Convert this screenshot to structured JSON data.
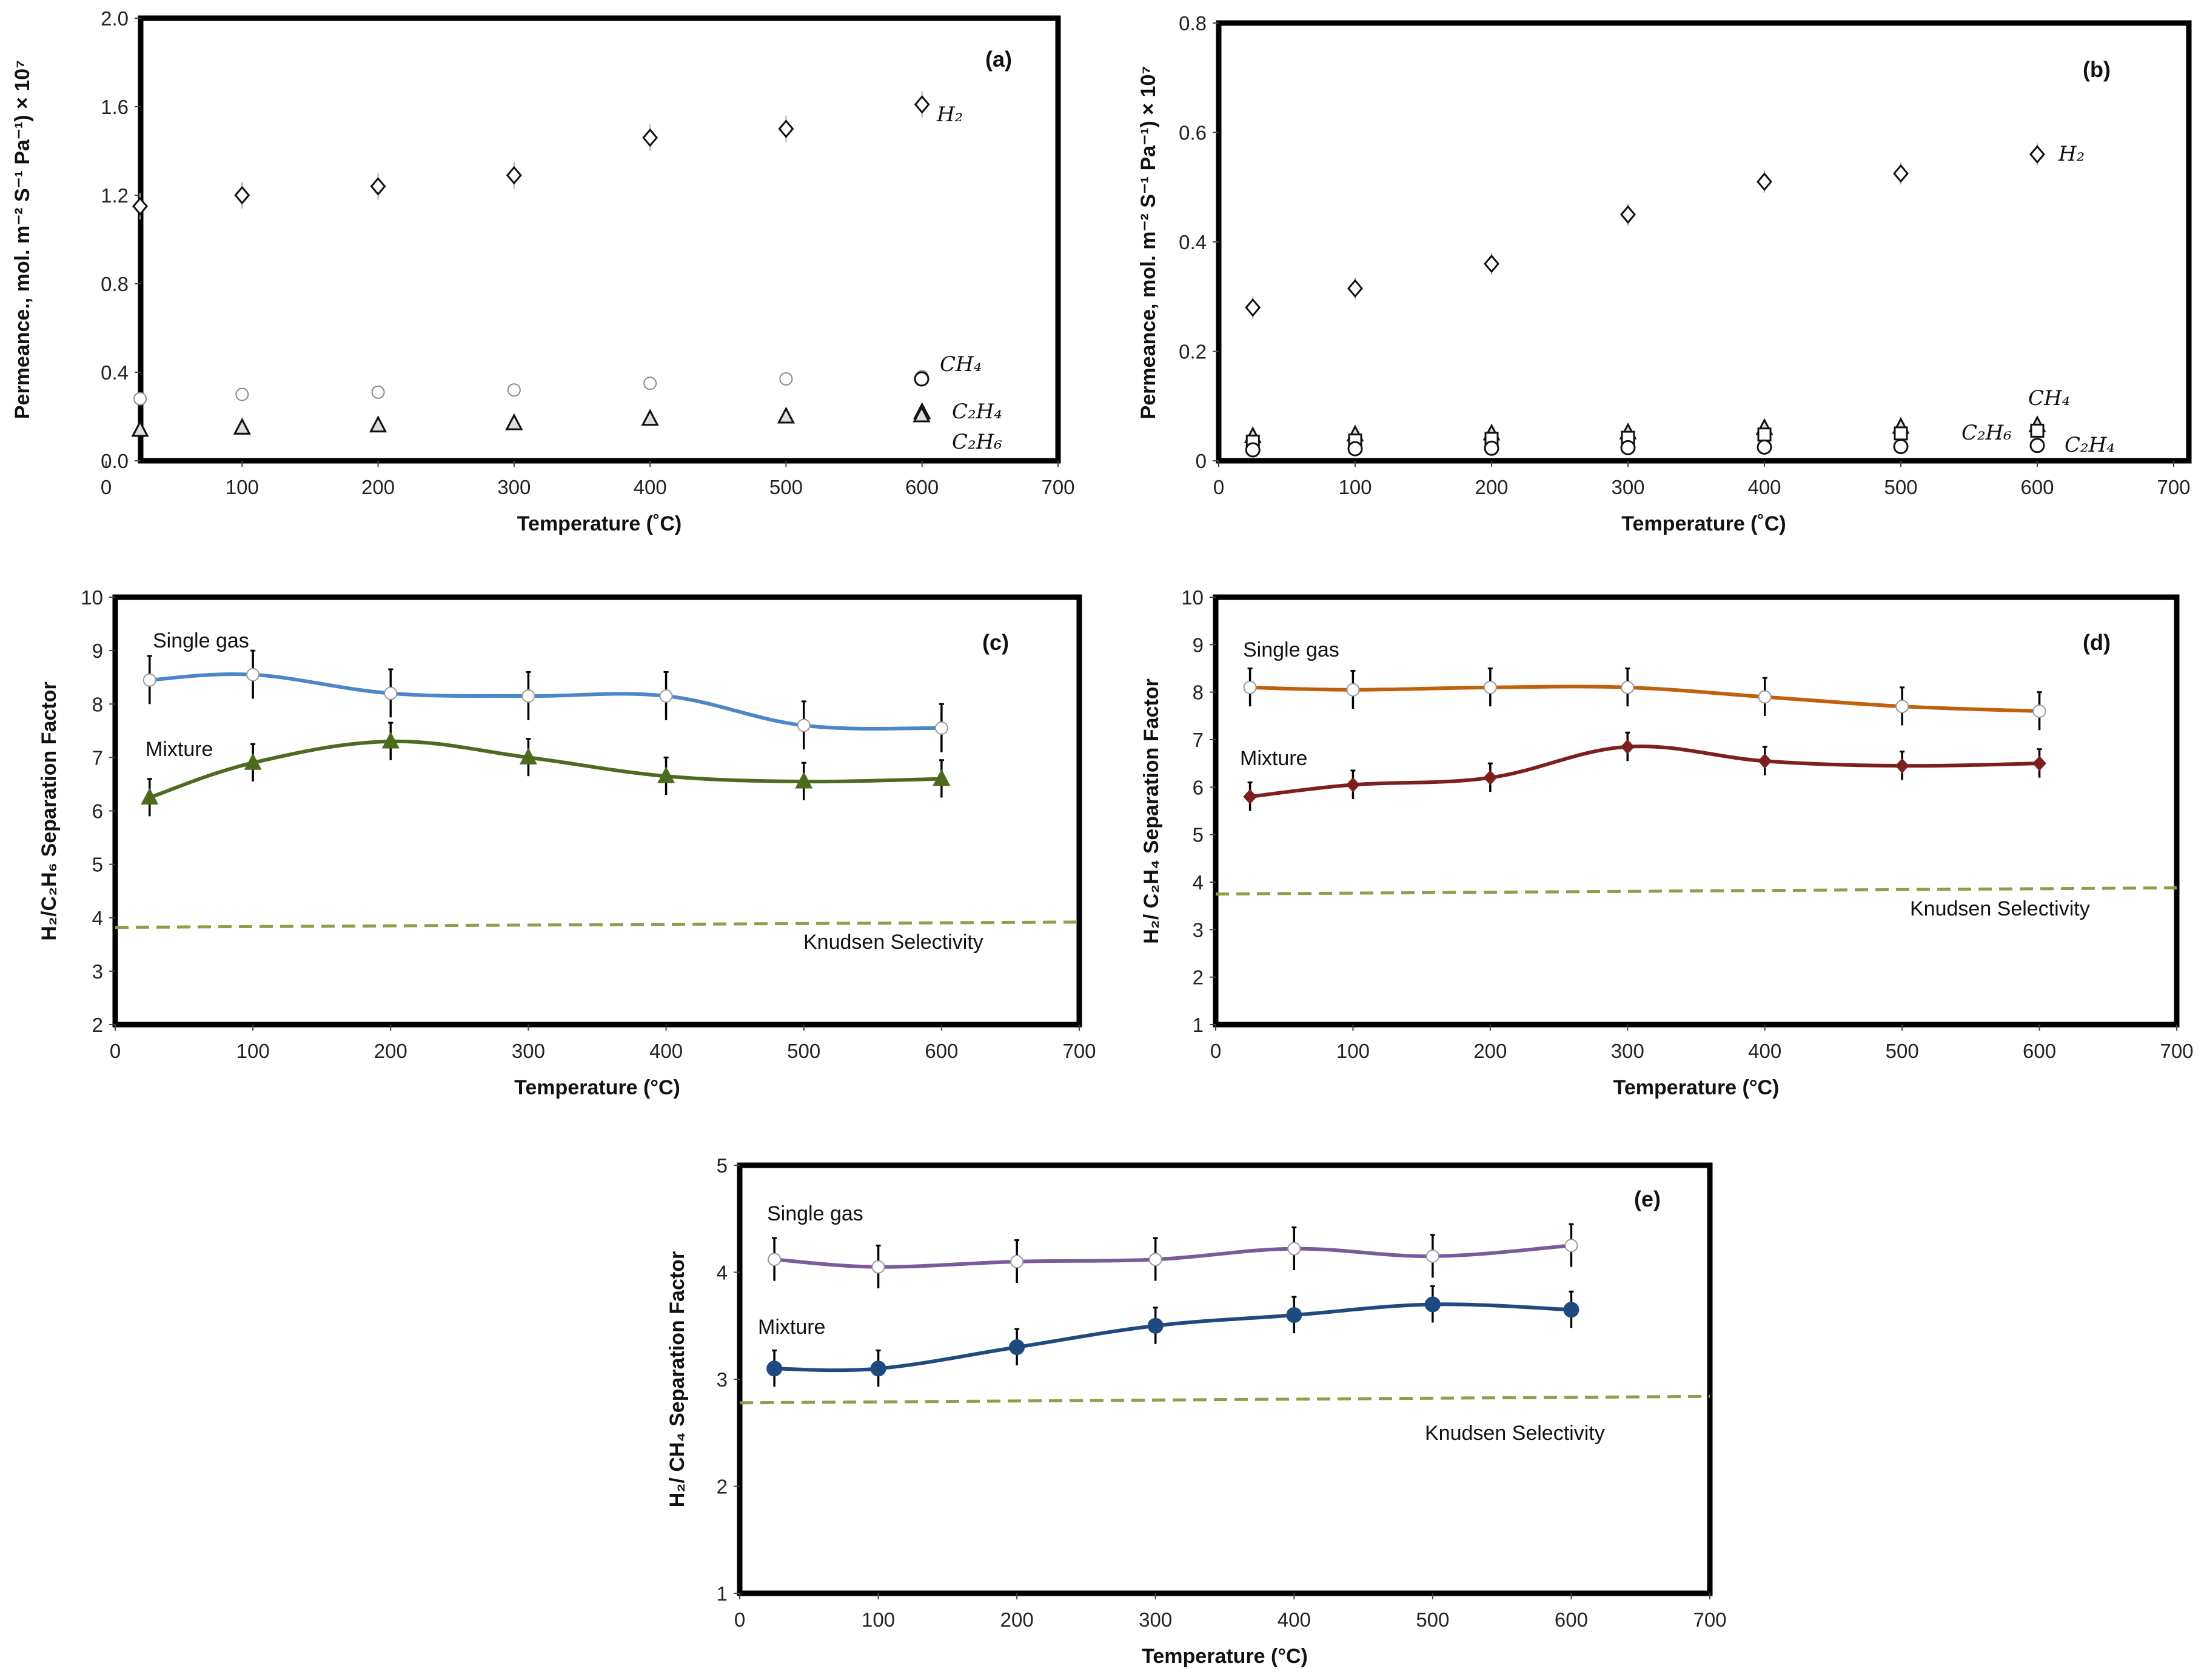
{
  "chart_data": [
    {
      "id": "a",
      "type": "scatter",
      "panel_label": "(a)",
      "xlabel": "Temperature (˚C)",
      "ylabel": "Permeance., mol. m⁻² S⁻¹ Pa⁻¹) × 10⁷",
      "xlim": [
        0,
        700
      ],
      "ylim": [
        0,
        2.0
      ],
      "xticks": [
        "0",
        "100",
        "200",
        "300",
        "400",
        "500",
        "600",
        "700"
      ],
      "yticks": [
        "0.0",
        "0.4",
        "0.8",
        "1.2",
        "1.6",
        "2.0"
      ],
      "x": [
        25,
        100,
        200,
        300,
        400,
        500,
        600
      ],
      "series": [
        {
          "name": "H₂",
          "marker": "diamond",
          "values": [
            1.15,
            1.2,
            1.24,
            1.29,
            1.46,
            1.5,
            1.61
          ]
        },
        {
          "name": "CH₄",
          "marker": "circle",
          "values": [
            0.28,
            0.3,
            0.31,
            0.32,
            0.35,
            0.37,
            0.38
          ]
        },
        {
          "name": "C₂H₄",
          "marker": "triangle",
          "values": [
            0.14,
            0.15,
            0.16,
            0.17,
            0.19,
            0.2,
            0.22
          ]
        },
        {
          "name": "C₂H₆",
          "marker": "triangle",
          "values": [
            0.14,
            0.15,
            0.16,
            0.17,
            0.19,
            0.2,
            0.22
          ]
        }
      ]
    },
    {
      "id": "b",
      "type": "scatter",
      "panel_label": "(b)",
      "xlabel": "Temperature (˚C)",
      "ylabel": "Permeance, mol. m⁻² S⁻¹ Pa⁻¹) × 10⁷",
      "xlim": [
        0,
        700
      ],
      "ylim": [
        0,
        0.8
      ],
      "xticks": [
        "0",
        "100",
        "200",
        "300",
        "400",
        "500",
        "600",
        "700"
      ],
      "yticks": [
        "0",
        "0.2",
        "0.4",
        "0.6",
        "0.8"
      ],
      "x": [
        25,
        100,
        200,
        300,
        400,
        500,
        600
      ],
      "series": [
        {
          "name": "H₂",
          "marker": "diamond",
          "values": [
            0.28,
            0.315,
            0.36,
            0.45,
            0.51,
            0.525,
            0.56
          ]
        },
        {
          "name": "CH₄",
          "marker": "triangle",
          "values": [
            0.045,
            0.048,
            0.05,
            0.052,
            0.06,
            0.062,
            0.065
          ]
        },
        {
          "name": "C₂H₆",
          "marker": "square",
          "values": [
            0.035,
            0.037,
            0.04,
            0.042,
            0.048,
            0.05,
            0.055
          ]
        },
        {
          "name": "C₂H₄",
          "marker": "circle",
          "values": [
            0.02,
            0.022,
            0.023,
            0.024,
            0.025,
            0.026,
            0.028
          ]
        }
      ]
    },
    {
      "id": "c",
      "type": "line",
      "panel_label": "(c)",
      "xlabel": "Temperature (°C)",
      "ylabel": "H₂/C₂H₆ Separation Factor",
      "xlim": [
        0,
        700
      ],
      "ylim": [
        2,
        10
      ],
      "xticks": [
        "0",
        "100",
        "200",
        "300",
        "400",
        "500",
        "600",
        "700"
      ],
      "yticks": [
        "2",
        "3",
        "4",
        "5",
        "6",
        "7",
        "8",
        "9",
        "10"
      ],
      "x": [
        25,
        100,
        200,
        300,
        400,
        500,
        600
      ],
      "series": [
        {
          "name": "Single gas",
          "color": "#4a86c8",
          "marker": "open-circle",
          "values": [
            8.45,
            8.55,
            8.2,
            8.15,
            8.15,
            7.6,
            7.55
          ],
          "error": 0.45
        },
        {
          "name": "Mixture",
          "color": "#4d6b1f",
          "marker": "triangle",
          "values": [
            6.25,
            6.9,
            7.3,
            7.0,
            6.65,
            6.55,
            6.6
          ],
          "error": 0.35
        }
      ],
      "reference": {
        "name": "Knudsen Selectivity",
        "color": "#8aa04a",
        "values": [
          3.82,
          3.92
        ]
      }
    },
    {
      "id": "d",
      "type": "line",
      "panel_label": "(d)",
      "xlabel": "Temperature (°C)",
      "ylabel": "H₂/ C₂H₄  Separation Factor",
      "xlim": [
        0,
        700
      ],
      "ylim": [
        1,
        10
      ],
      "xticks": [
        "0",
        "100",
        "200",
        "300",
        "400",
        "500",
        "600",
        "700"
      ],
      "yticks": [
        "1",
        "2",
        "3",
        "4",
        "5",
        "6",
        "7",
        "8",
        "9",
        "10"
      ],
      "x": [
        25,
        100,
        200,
        300,
        400,
        500,
        600
      ],
      "series": [
        {
          "name": "Single gas",
          "color": "#c0600a",
          "marker": "open-circle",
          "values": [
            8.1,
            8.05,
            8.1,
            8.1,
            7.9,
            7.7,
            7.6
          ],
          "error": 0.4
        },
        {
          "name": "Mixture",
          "color": "#7d1f1f",
          "marker": "diamond-filled",
          "values": [
            5.8,
            6.05,
            6.2,
            6.85,
            6.55,
            6.45,
            6.5
          ],
          "error": 0.3
        }
      ],
      "reference": {
        "name": "Knudsen Selectivity",
        "color": "#8aa04a",
        "values": [
          3.75,
          3.88
        ]
      }
    },
    {
      "id": "e",
      "type": "line",
      "panel_label": "(e)",
      "xlabel": "Temperature (°C)",
      "ylabel": "H₂/ CH₄  Separation Factor",
      "xlim": [
        0,
        700
      ],
      "ylim": [
        1,
        5
      ],
      "xticks": [
        "0",
        "100",
        "200",
        "300",
        "400",
        "500",
        "600",
        "700"
      ],
      "yticks": [
        "1",
        "2",
        "3",
        "4",
        "5"
      ],
      "x": [
        25,
        100,
        200,
        300,
        400,
        500,
        600
      ],
      "series": [
        {
          "name": "Single gas",
          "color": "#7a5a9a",
          "marker": "open-circle",
          "values": [
            4.12,
            4.05,
            4.1,
            4.12,
            4.22,
            4.15,
            4.25
          ],
          "error": 0.2
        },
        {
          "name": "Mixture",
          "color": "#1f4a80",
          "marker": "circle-filled",
          "values": [
            3.1,
            3.1,
            3.3,
            3.5,
            3.6,
            3.7,
            3.65
          ],
          "error": 0.17
        }
      ],
      "reference": {
        "name": "Knudsen Selectivity",
        "color": "#8aa04a",
        "values": [
          2.78,
          2.84
        ]
      }
    }
  ]
}
